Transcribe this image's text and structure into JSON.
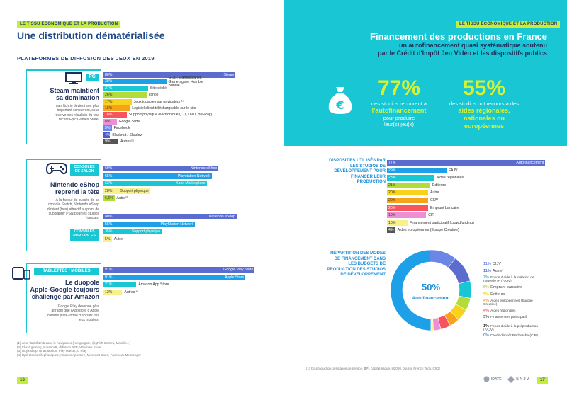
{
  "left": {
    "tag": "LE TISSU ÉCONOMIQUE ET LA PRODUCTION",
    "title": "Une distribution dématérialisée",
    "subtitle": "PLATEFORMES DE DIFFUSION DES JEUX EN 2019",
    "pc": {
      "pill": "PC",
      "head": [
        "Steam maintient",
        "sa domination"
      ],
      "text": [
        "mais Itch.io devient son plus",
        "important concurrent, sous",
        "réserve des résultats du tout",
        "récent Epic Games Store."
      ],
      "bars": [
        {
          "value": 80,
          "pct": "80%",
          "label": "Steam",
          "color": "#5b6ccf",
          "inside": true
        },
        {
          "value": 38,
          "pct": "38%",
          "label": "GOG, Gamesplanet, Gamersgate, Humble Bundle...",
          "color": "#1ea0e8",
          "inside": false
        },
        {
          "value": 27,
          "pct": "27%",
          "label": "Site dédié",
          "color": "#18c6d4",
          "inside": false
        },
        {
          "value": 26,
          "pct": "26%",
          "label": "Itch.io",
          "color": "#b4dc38",
          "inside": false
        },
        {
          "value": 17,
          "pct": "17%",
          "label": "Jeux jouables sur navigateur⁽¹⁾",
          "color": "#f8d21c",
          "inside": false
        },
        {
          "value": 16,
          "pct": "16%",
          "label": "Logiciel client téléchargeable sur le site",
          "color": "#f7a21b",
          "inside": false
        },
        {
          "value": 14,
          "pct": "14%",
          "label": "Support physique électronique (CD, DVD, Blu-Ray)",
          "color": "#f7545d",
          "inside": false
        },
        {
          "value": 8,
          "pct": "8%",
          "label": "Google Store",
          "color": "#ee8fd5",
          "inside": false
        },
        {
          "value": 5,
          "pct": "5%",
          "label": "Facebook",
          "color": "#6c86e8",
          "inside": false
        },
        {
          "value": 4,
          "pct": "4%",
          "label": "Blacknut / Shadow",
          "color": "#4a5ad0",
          "inside": false
        },
        {
          "value": 9,
          "pct": "9%",
          "label": "Autres⁽²⁾",
          "color": "#555555",
          "inside": false
        }
      ]
    },
    "console": {
      "pill1": "CONSOLES DE SALON",
      "pill2": "CONSOLES PORTABLES",
      "head": [
        "Nintendo eShop",
        "reprend la tête"
      ],
      "text": [
        "À la faveur du succès de sa",
        "console Switch, Nintendo eShop",
        "devient (très) attractif au point de",
        "supplanter PSN pour les studios",
        "français."
      ],
      "salon": [
        {
          "value": 69,
          "pct": "69%",
          "label": "Nintendo eShop",
          "color": "#5b6ccf"
        },
        {
          "value": 65,
          "pct": "65%",
          "label": "Playstation Network",
          "color": "#1ea0e8"
        },
        {
          "value": 62,
          "pct": "62%",
          "label": "Xbox Marketplace",
          "color": "#18c6d4"
        },
        {
          "value": 28,
          "pct": "28%",
          "label": "Support physique",
          "color": "#f8f08a"
        },
        {
          "value": 6.6,
          "pct": "6,6%",
          "label": "Autre⁽³⁾",
          "color": "#b4dc38"
        }
      ],
      "portable": [
        {
          "value": 80,
          "pct": "80%",
          "label": "Nintendo eShop",
          "color": "#5b6ccf"
        },
        {
          "value": 55,
          "pct": "55%",
          "label": "PlayStation Network",
          "color": "#1ea0e8"
        },
        {
          "value": 35,
          "pct": "35%",
          "label": "Support physique",
          "color": "#18c6d4"
        },
        {
          "value": 5,
          "pct": "5%",
          "label": "Autre",
          "color": "#f8f08a"
        }
      ]
    },
    "mobile": {
      "pill": "TABLETTES / MOBILES",
      "head": [
        "Le duopole",
        "Apple-Google toujours",
        "challengé par Amazon"
      ],
      "text": [
        "Google Play devenue plus",
        "attractif que l'Appstore d'Apple",
        "comme plate-forme d'accueil des",
        "jeux mobiles."
      ],
      "bars": [
        {
          "value": 97,
          "pct": "97%",
          "label": "Google Play Store",
          "color": "#5b6ccf"
        },
        {
          "value": 91,
          "pct": "91%",
          "label": "Apple Store",
          "color": "#1ea0e8"
        },
        {
          "value": 21,
          "pct": "21%",
          "label": "Amazon App Store",
          "color": "#18c6d4"
        },
        {
          "value": 12,
          "pct": "12%",
          "label": "Autres⁽⁴⁾",
          "color": "#f8f08a"
        }
      ]
    },
    "footnotes": [
      "(1) Jeux flash/html5 dans le navigateur (Kongregate, @gFish Games, Miniclip...)",
      "(2) Cloud gaming, stores VR, diffusion B2B, Windows Store",
      "(3) Ouya shop, Unas Motion, Play Market, U Play",
      "(4) Opérateurs téléphoniques, Amazon Appstore, Microsoft Store, Facebook Messenger"
    ],
    "page": "16"
  },
  "right": {
    "tag": "LE TISSU ÉCONOMIQUE ET LA PRODUCTION",
    "header": {
      "title": "Financement des productions en France",
      "sub1": "un autofinancement quasi systématique soutenu",
      "sub2": "par le Crédit d'Impôt Jeu Vidéo et les dispositifs publics"
    },
    "stat1": {
      "value": "77%",
      "pre": "des studios recourent à",
      "strong": "l'autofinancement",
      "post1": "pour produire",
      "post2": "leur(s) jeu(x)"
    },
    "stat2": {
      "value": "55%",
      "pre": "des studios ont recours à des",
      "strong1": "aides régionales,",
      "strong2": "nationales ou",
      "strong3": "européennes"
    },
    "dispositifs": {
      "title": [
        "DISPOSITIFS UTILISÉS PAR",
        "LES STUDIOS DE",
        "DÉVELOPPEMENT POUR",
        "FINANCER LEUR",
        "PRODUCTION"
      ],
      "bars": [
        {
          "value": 77,
          "pct": "77%",
          "label": "Autofinancement",
          "color": "#5b6ccf",
          "inside": true
        },
        {
          "value": 29,
          "pct": "29%",
          "label": "FAJV",
          "color": "#1ea0e8",
          "inside": false
        },
        {
          "value": 23,
          "pct": "23%",
          "label": "Aides régionales",
          "color": "#18c6d4",
          "inside": false
        },
        {
          "value": 21,
          "pct": "21%",
          "label": "Éditeurs",
          "color": "#b4dc38",
          "inside": false
        },
        {
          "value": 20,
          "pct": "20%",
          "label": "Autre",
          "color": "#f8d21c",
          "inside": false
        },
        {
          "value": 20,
          "pct": "20%",
          "label": "CIJV",
          "color": "#f7a21b",
          "inside": false
        },
        {
          "value": 20,
          "pct": "20%",
          "label": "Emprunt bancaire",
          "color": "#f7545d",
          "inside": false
        },
        {
          "value": 19,
          "pct": "19%",
          "label": "CIR",
          "color": "#ee8fd5",
          "inside": false
        },
        {
          "value": 10,
          "pct": "10%",
          "label": "Financement participatif (crowdfunding)",
          "color": "#f8f08a",
          "inside": false
        },
        {
          "value": 4,
          "pct": "4%",
          "label": "Aides européennes (Europe Créative)",
          "color": "#555555",
          "inside": false
        }
      ]
    },
    "repartition": {
      "title": [
        "RÉPARTITION DES MODES",
        "DE FINANCEMENT DANS",
        "LES BUDGETS DE",
        "PRODUCTION DES STUDIOS",
        "DE DÉVELOPPEMENT"
      ],
      "center_value": "50%",
      "center_label": "Autofinancement",
      "slices": [
        {
          "value": 50,
          "color": "#1ea0e8"
        },
        {
          "value": 11,
          "color": "#6c86e8"
        },
        {
          "value": 11,
          "color": "#5b6ccf"
        },
        {
          "value": 7,
          "color": "#18c6d4"
        },
        {
          "value": 5,
          "color": "#b4dc38"
        },
        {
          "value": 5,
          "color": "#f8d21c"
        },
        {
          "value": 4,
          "color": "#f7a21b"
        },
        {
          "value": 4,
          "color": "#f7545d"
        },
        {
          "value": 3,
          "color": "#ee8fd5"
        },
        {
          "value": 1,
          "color": "#f8f08a"
        },
        {
          "value": 0,
          "color": "#555555"
        }
      ],
      "legend": [
        {
          "pct": "11%",
          "label": "CIJV",
          "color": "#6c86e8"
        },
        {
          "pct": "11%",
          "label": "Autre¹",
          "color": "#5b6ccf"
        },
        {
          "pct": "7%",
          "label": "Fonds d'aide à la création de nouvelle IP (FAJV)",
          "color": "#18c6d4"
        },
        {
          "pct": "5%",
          "label": "Emprunt bancaire",
          "color": "#b4dc38"
        },
        {
          "pct": "5%",
          "label": "Éditeurs",
          "color": "#f8d21c"
        },
        {
          "pct": "4%",
          "label": "Aides européennes (Europe Créative)",
          "color": "#f7a21b"
        },
        {
          "pct": "4%",
          "label": "Aides régionales",
          "color": "#f7545d"
        },
        {
          "pct": "3%",
          "label": "Financement participatif",
          "color": "#555555"
        },
        {
          "pct": "1%",
          "label": "Fonds d'aide à la préproduction (FAJV)",
          "color": "#333333"
        },
        {
          "pct": "0%",
          "label": "Crédit d'impôt Recherche (CIR)",
          "color": "#1ea0e8"
        }
      ]
    },
    "footnote": "(1) Co-production, prestation de service, BPI, capital-risque, H2020, bourse French Tech, CICE",
    "logo1": "IDATE",
    "logo2": "SNJV",
    "page": "17"
  }
}
